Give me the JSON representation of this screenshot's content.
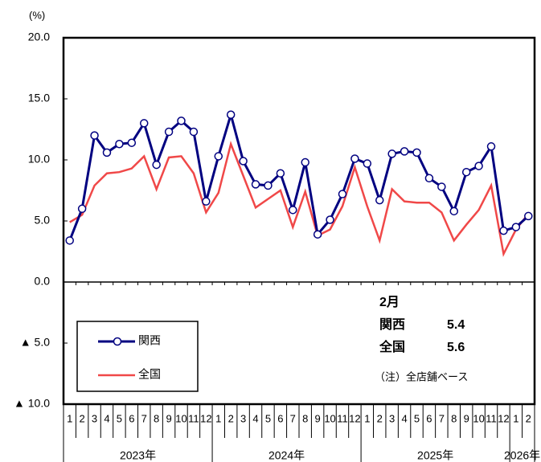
{
  "chart_data": {
    "type": "line",
    "ylabel": "(%)",
    "categories": [
      "1",
      "2",
      "3",
      "4",
      "5",
      "6",
      "7",
      "8",
      "9",
      "10",
      "11",
      "12",
      "1",
      "2",
      "3",
      "4",
      "5",
      "6",
      "7",
      "8",
      "9",
      "10",
      "11",
      "12",
      "1",
      "2",
      "3",
      "4",
      "5",
      "6",
      "7",
      "8",
      "9",
      "10",
      "11",
      "12",
      "1",
      "2"
    ],
    "year_labels": [
      "2023年",
      "2024年",
      "2025年",
      "2026年"
    ],
    "series": [
      {
        "name": "関西",
        "color": "#000080",
        "marker": true,
        "values": [
          3.4,
          6.0,
          12.0,
          10.6,
          11.3,
          11.4,
          13.0,
          9.6,
          12.3,
          13.2,
          12.3,
          6.6,
          10.3,
          13.7,
          9.9,
          8.0,
          7.9,
          8.9,
          5.9,
          9.8,
          3.9,
          5.1,
          7.2,
          10.1,
          9.7,
          6.7,
          10.5,
          10.7,
          10.6,
          8.5,
          7.8,
          5.8,
          9.0,
          9.5,
          11.1,
          4.2,
          4.5,
          5.4
        ]
      },
      {
        "name": "全国",
        "color": "#f04848",
        "marker": false,
        "values": [
          4.9,
          5.5,
          7.9,
          8.9,
          9.0,
          9.3,
          10.3,
          7.6,
          10.2,
          10.3,
          8.9,
          5.7,
          7.3,
          11.3,
          8.7,
          6.1,
          6.8,
          7.5,
          4.5,
          7.4,
          3.8,
          4.3,
          6.2,
          9.4,
          6.2,
          3.4,
          7.6,
          6.6,
          6.5,
          6.5,
          5.7,
          3.4,
          4.7,
          5.9,
          7.9,
          2.3,
          4.3,
          5.6
        ]
      }
    ],
    "ylim": [
      -10,
      20
    ],
    "yticks": [
      {
        "value": -10,
        "label": "▲ 10.0"
      },
      {
        "value": -5,
        "label": "▲ 5.0"
      },
      {
        "value": 0,
        "label": "0.0"
      },
      {
        "value": 5,
        "label": "5.0"
      },
      {
        "value": 10,
        "label": "10.0"
      },
      {
        "value": 15,
        "label": "15.0"
      },
      {
        "value": 20,
        "label": "20.0"
      }
    ],
    "grid": false,
    "legend": "lower-left",
    "annotation": {
      "month": "2月",
      "note": "（注）全店舗ベース"
    }
  }
}
